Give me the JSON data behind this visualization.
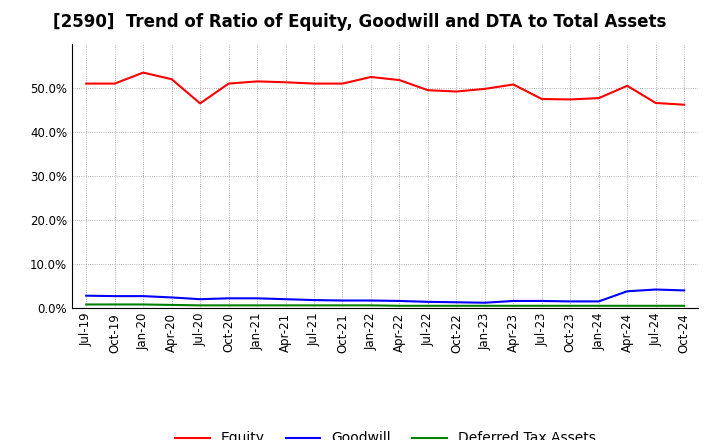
{
  "title": "[2590]  Trend of Ratio of Equity, Goodwill and DTA to Total Assets",
  "x_labels": [
    "Jul-19",
    "Oct-19",
    "Jan-20",
    "Apr-20",
    "Jul-20",
    "Oct-20",
    "Jan-21",
    "Apr-21",
    "Jul-21",
    "Oct-21",
    "Jan-22",
    "Apr-22",
    "Jul-22",
    "Oct-22",
    "Jan-23",
    "Apr-23",
    "Jul-23",
    "Oct-23",
    "Jan-24",
    "Apr-24",
    "Jul-24",
    "Oct-24"
  ],
  "equity": [
    0.51,
    0.51,
    0.535,
    0.52,
    0.465,
    0.51,
    0.515,
    0.513,
    0.51,
    0.51,
    0.525,
    0.518,
    0.495,
    0.492,
    0.498,
    0.508,
    0.475,
    0.474,
    0.477,
    0.505,
    0.466,
    0.462
  ],
  "goodwill": [
    0.028,
    0.027,
    0.027,
    0.024,
    0.02,
    0.022,
    0.022,
    0.02,
    0.018,
    0.017,
    0.017,
    0.016,
    0.014,
    0.013,
    0.012,
    0.016,
    0.016,
    0.015,
    0.015,
    0.038,
    0.042,
    0.04
  ],
  "dta": [
    0.008,
    0.008,
    0.008,
    0.007,
    0.006,
    0.006,
    0.006,
    0.006,
    0.006,
    0.006,
    0.006,
    0.005,
    0.005,
    0.005,
    0.005,
    0.005,
    0.005,
    0.005,
    0.005,
    0.005,
    0.005,
    0.005
  ],
  "equity_color": "#FF0000",
  "goodwill_color": "#0000FF",
  "dta_color": "#008000",
  "bg_color": "#FFFFFF",
  "plot_bg_color": "#FFFFFF",
  "ylim": [
    0.0,
    0.6
  ],
  "yticks": [
    0.0,
    0.1,
    0.2,
    0.3,
    0.4,
    0.5
  ],
  "legend_labels": [
    "Equity",
    "Goodwill",
    "Deferred Tax Assets"
  ],
  "title_fontsize": 12,
  "axis_fontsize": 8.5,
  "legend_fontsize": 10
}
